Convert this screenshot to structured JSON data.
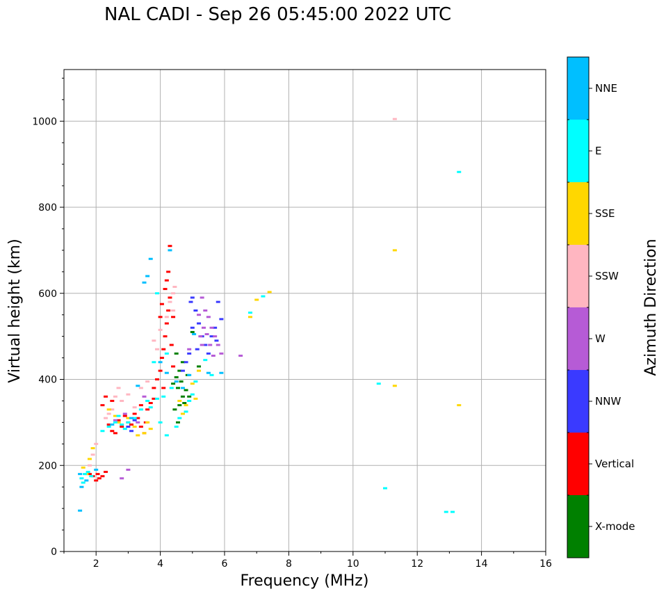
{
  "chart_data": {
    "type": "scatter",
    "title": "NAL CADI - Sep 26 05:45:00 2022 UTC",
    "xlabel": "Frequency (MHz)",
    "ylabel": "Virtual height (km)",
    "xlim": [
      1,
      16
    ],
    "ylim": [
      0,
      1120
    ],
    "xticks": [
      2,
      4,
      6,
      8,
      10,
      12,
      14,
      16
    ],
    "yticks": [
      0,
      200,
      400,
      600,
      800,
      1000
    ],
    "grid": true,
    "colorbar": {
      "label": "Azimuth Direction",
      "categories": [
        {
          "name": "X-mode",
          "color": "#008000"
        },
        {
          "name": "Vertical",
          "color": "#ff0000"
        },
        {
          "name": "NNW",
          "color": "#3a3aff"
        },
        {
          "name": "W",
          "color": "#b65bd6"
        },
        {
          "name": "SSW",
          "color": "#ffb6c1"
        },
        {
          "name": "SSE",
          "color": "#ffd700"
        },
        {
          "name": "E",
          "color": "#00ffff"
        },
        {
          "name": "NNE",
          "color": "#00bfff"
        }
      ]
    },
    "series": [
      {
        "name": "X-mode",
        "points": [
          [
            4.5,
            405
          ],
          [
            4.55,
            380
          ],
          [
            4.6,
            340
          ],
          [
            4.65,
            395
          ],
          [
            4.7,
            360
          ],
          [
            4.75,
            345
          ],
          [
            4.5,
            460
          ],
          [
            4.45,
            330
          ],
          [
            4.8,
            375
          ],
          [
            4.6,
            420
          ],
          [
            4.55,
            300
          ],
          [
            4.85,
            410
          ],
          [
            4.7,
            440
          ],
          [
            5.0,
            510
          ],
          [
            4.4,
            390
          ],
          [
            4.9,
            360
          ],
          [
            5.2,
            430
          ]
        ]
      },
      {
        "name": "Vertical",
        "points": [
          [
            1.9,
            175
          ],
          [
            2.0,
            165
          ],
          [
            2.05,
            180
          ],
          [
            2.1,
            170
          ],
          [
            2.2,
            175
          ],
          [
            2.3,
            185
          ],
          [
            1.8,
            180
          ],
          [
            2.4,
            295
          ],
          [
            2.5,
            280
          ],
          [
            2.6,
            275
          ],
          [
            2.7,
            305
          ],
          [
            2.8,
            290
          ],
          [
            2.9,
            315
          ],
          [
            3.0,
            300
          ],
          [
            3.1,
            295
          ],
          [
            3.2,
            320
          ],
          [
            3.3,
            310
          ],
          [
            3.4,
            290
          ],
          [
            3.5,
            275
          ],
          [
            3.55,
            300
          ],
          [
            3.6,
            330
          ],
          [
            3.7,
            345
          ],
          [
            3.8,
            380
          ],
          [
            3.9,
            400
          ],
          [
            4.0,
            420
          ],
          [
            4.05,
            450
          ],
          [
            4.1,
            470
          ],
          [
            4.15,
            500
          ],
          [
            4.2,
            530
          ],
          [
            4.25,
            560
          ],
          [
            4.3,
            590
          ],
          [
            4.15,
            610
          ],
          [
            4.25,
            650
          ],
          [
            4.3,
            710
          ],
          [
            4.2,
            630
          ],
          [
            4.35,
            480
          ],
          [
            4.4,
            430
          ],
          [
            4.0,
            545
          ],
          [
            4.1,
            380
          ],
          [
            2.3,
            360
          ],
          [
            2.2,
            340
          ],
          [
            2.5,
            350
          ],
          [
            3.4,
            340
          ],
          [
            3.8,
            355
          ],
          [
            4.4,
            545
          ],
          [
            4.05,
            575
          ]
        ]
      },
      {
        "name": "NNW",
        "points": [
          [
            5.0,
            590
          ],
          [
            5.1,
            560
          ],
          [
            5.2,
            530
          ],
          [
            5.3,
            500
          ],
          [
            5.4,
            480
          ],
          [
            5.5,
            460
          ],
          [
            5.6,
            500
          ],
          [
            5.7,
            520
          ],
          [
            5.8,
            580
          ],
          [
            5.9,
            540
          ],
          [
            4.9,
            460
          ],
          [
            4.8,
            440
          ],
          [
            5.0,
            520
          ],
          [
            5.15,
            470
          ],
          [
            4.7,
            420
          ],
          [
            3.0,
            290
          ],
          [
            3.2,
            305
          ],
          [
            3.1,
            280
          ],
          [
            4.95,
            580
          ],
          [
            5.75,
            490
          ]
        ]
      },
      {
        "name": "W",
        "points": [
          [
            5.3,
            590
          ],
          [
            5.4,
            560
          ],
          [
            5.5,
            545
          ],
          [
            5.6,
            520
          ],
          [
            5.7,
            500
          ],
          [
            5.8,
            480
          ],
          [
            5.9,
            460
          ],
          [
            5.2,
            550
          ],
          [
            5.3,
            480
          ],
          [
            5.45,
            505
          ],
          [
            5.35,
            520
          ],
          [
            5.55,
            480
          ],
          [
            4.9,
            470
          ],
          [
            6.5,
            455
          ],
          [
            2.8,
            170
          ],
          [
            3.0,
            190
          ],
          [
            2.6,
            305
          ],
          [
            2.9,
            320
          ],
          [
            3.3,
            300
          ],
          [
            3.5,
            360
          ],
          [
            5.25,
            500
          ],
          [
            5.65,
            455
          ]
        ]
      },
      {
        "name": "SSW",
        "points": [
          [
            1.9,
            225
          ],
          [
            1.8,
            200
          ],
          [
            2.0,
            250
          ],
          [
            2.4,
            320
          ],
          [
            2.5,
            330
          ],
          [
            2.6,
            360
          ],
          [
            2.7,
            380
          ],
          [
            2.8,
            350
          ],
          [
            3.0,
            365
          ],
          [
            3.2,
            335
          ],
          [
            3.6,
            395
          ],
          [
            3.8,
            490
          ],
          [
            4.0,
            515
          ],
          [
            4.2,
            545
          ],
          [
            4.3,
            580
          ],
          [
            4.4,
            600
          ],
          [
            4.45,
            615
          ],
          [
            4.4,
            560
          ],
          [
            3.9,
            470
          ],
          [
            11.3,
            1005
          ],
          [
            2.3,
            310
          ],
          [
            3.4,
            380
          ]
        ]
      },
      {
        "name": "SSE",
        "points": [
          [
            1.6,
            195
          ],
          [
            1.7,
            180
          ],
          [
            1.8,
            215
          ],
          [
            1.9,
            240
          ],
          [
            2.6,
            315
          ],
          [
            2.7,
            300
          ],
          [
            3.0,
            310
          ],
          [
            3.2,
            290
          ],
          [
            3.3,
            270
          ],
          [
            3.5,
            275
          ],
          [
            3.7,
            285
          ],
          [
            4.6,
            350
          ],
          [
            4.8,
            340
          ],
          [
            5.0,
            390
          ],
          [
            5.2,
            420
          ],
          [
            7.0,
            585
          ],
          [
            7.4,
            603
          ],
          [
            6.8,
            545
          ],
          [
            11.3,
            700
          ],
          [
            11.3,
            385
          ],
          [
            13.3,
            340
          ],
          [
            5.1,
            355
          ],
          [
            4.7,
            320
          ],
          [
            3.6,
            300
          ],
          [
            2.4,
            330
          ]
        ]
      },
      {
        "name": "E",
        "points": [
          [
            1.55,
            170
          ],
          [
            1.6,
            160
          ],
          [
            1.65,
            180
          ],
          [
            1.75,
            185
          ],
          [
            1.85,
            175
          ],
          [
            2.2,
            280
          ],
          [
            2.4,
            290
          ],
          [
            2.6,
            300
          ],
          [
            2.7,
            315
          ],
          [
            2.8,
            295
          ],
          [
            2.9,
            285
          ],
          [
            3.0,
            300
          ],
          [
            3.2,
            310
          ],
          [
            3.4,
            330
          ],
          [
            3.6,
            350
          ],
          [
            3.7,
            335
          ],
          [
            3.9,
            355
          ],
          [
            4.1,
            360
          ],
          [
            4.0,
            300
          ],
          [
            4.2,
            270
          ],
          [
            4.5,
            290
          ],
          [
            4.6,
            310
          ],
          [
            4.8,
            325
          ],
          [
            4.9,
            350
          ],
          [
            5.0,
            365
          ],
          [
            5.1,
            395
          ],
          [
            5.4,
            445
          ],
          [
            5.6,
            410
          ],
          [
            6.8,
            555
          ],
          [
            7.2,
            593
          ],
          [
            10.8,
            390
          ],
          [
            11.0,
            147
          ],
          [
            12.9,
            92
          ],
          [
            13.1,
            92
          ],
          [
            13.3,
            882
          ],
          [
            3.8,
            440
          ],
          [
            4.35,
            380
          ],
          [
            4.2,
            460
          ],
          [
            3.9,
            600
          ]
        ]
      },
      {
        "name": "NNE",
        "points": [
          [
            1.5,
            180
          ],
          [
            1.5,
            95
          ],
          [
            1.55,
            150
          ],
          [
            1.7,
            165
          ],
          [
            2.0,
            190
          ],
          [
            2.5,
            295
          ],
          [
            3.7,
            680
          ],
          [
            3.5,
            625
          ],
          [
            3.6,
            640
          ],
          [
            4.0,
            440
          ],
          [
            4.2,
            415
          ],
          [
            4.5,
            395
          ],
          [
            4.7,
            380
          ],
          [
            4.9,
            410
          ],
          [
            5.05,
            505
          ],
          [
            5.5,
            415
          ],
          [
            5.9,
            415
          ],
          [
            3.3,
            385
          ],
          [
            3.1,
            310
          ],
          [
            4.3,
            700
          ]
        ]
      }
    ]
  }
}
